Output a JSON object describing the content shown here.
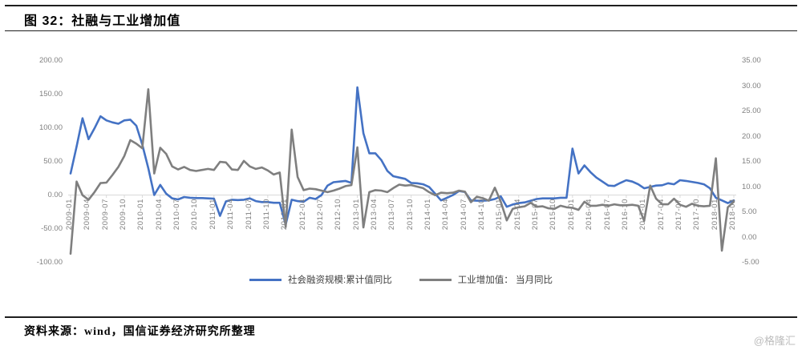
{
  "page": {
    "title": "图 32：社融与工业增加值",
    "source_note": "资料来源：wind，国信证券经济研究所整理",
    "watermark": "@格隆汇"
  },
  "chart_data": {
    "type": "line",
    "title": "社融与工业增加值",
    "gridlines": "none",
    "legend_position": "bottom",
    "x_tick_labels": [
      "2009-01",
      "2009-04",
      "2009-07",
      "2009-10",
      "2010-01",
      "2010-04",
      "2010-07",
      "2010-10",
      "2011-01",
      "2011-04",
      "2011-07",
      "2011-10",
      "2012-01",
      "2012-04",
      "2012-07",
      "2012-10",
      "2013-01",
      "2013-04",
      "2013-07",
      "2013-10",
      "2014-01",
      "2014-04",
      "2014-07",
      "2014-10",
      "2015-01",
      "2015-04",
      "2015-07",
      "2015-10",
      "2016-01",
      "2016-04",
      "2016-07",
      "2016-10",
      "2017-01",
      "2017-04",
      "2017-07",
      "2017-10",
      "2018-01",
      "2018-04"
    ],
    "x_points_per_tick": 3,
    "x_monthly_range": "2009-01 to 2018-04",
    "left_axis": {
      "min": -100,
      "max": 200,
      "step": 50,
      "tick_labels": [
        "200.00",
        "150.00",
        "100.00",
        "50.00",
        "0.00",
        "-50.00",
        "-100.00"
      ]
    },
    "right_axis": {
      "min": -5,
      "max": 35,
      "step": 5,
      "tick_labels": [
        "35.00",
        "30.00",
        "25.00",
        "20.00",
        "15.00",
        "10.00",
        "5.00",
        "0.00",
        "-5.00"
      ]
    },
    "axis_color": "#D9D9D9",
    "series": [
      {
        "name": "社会融资规模:累计值同比",
        "axis": "left",
        "color": "#4472C4",
        "values": [
          32,
          72,
          114,
          83,
          99,
          117,
          111,
          108,
          106,
          111,
          112,
          103,
          75,
          40,
          0,
          15,
          2,
          -5,
          -6.5,
          -3,
          -4,
          -4.5,
          -4.5,
          -5,
          -5.5,
          -31,
          -9.5,
          -7,
          -7.5,
          -7,
          -5,
          -9,
          -10.5,
          -10.5,
          -11.5,
          -11.5,
          -44,
          -7,
          -9,
          -10,
          -4,
          -6,
          0,
          14,
          19,
          20,
          21,
          18,
          160,
          92,
          62,
          62,
          52,
          36,
          28,
          26,
          24,
          18,
          17.5,
          16,
          12,
          2,
          -8,
          -4,
          0,
          6,
          4.5,
          -8,
          -8.5,
          -8.5,
          -8,
          -6,
          -2,
          -17.5,
          -14,
          -12,
          -11,
          -8.5,
          -6,
          -5,
          -5,
          -5,
          -4,
          -4,
          69,
          32,
          44,
          34,
          26,
          20,
          14,
          13.5,
          18,
          22,
          20,
          16,
          10,
          12,
          14,
          14.5,
          17.5,
          16,
          22,
          21,
          19.5,
          18,
          16,
          10,
          -4,
          -8,
          -12,
          -8
        ]
      },
      {
        "name": "工业增加值： 当月同比",
        "axis": "right",
        "color": "#7F7F7F",
        "values": [
          -3.3,
          11,
          8.3,
          7.4,
          8.9,
          10.7,
          10.8,
          12.3,
          13.9,
          16.1,
          19.2,
          18.5,
          17.6,
          29.3,
          12.6,
          17.7,
          16.5,
          14,
          13.4,
          13.9,
          13.3,
          13.1,
          13.3,
          13.5,
          13.3,
          14.9,
          14.8,
          13.4,
          13.3,
          15.1,
          14,
          13.5,
          13.8,
          13.2,
          12.4,
          12.8,
          2,
          21.3,
          11.9,
          9.3,
          9.6,
          9.5,
          9.2,
          8.9,
          9.2,
          9.6,
          10.1,
          10.3,
          17.8,
          1.9,
          8.9,
          9.3,
          9.2,
          8.9,
          9.7,
          10.4,
          10.2,
          10.3,
          10,
          9.7,
          8.9,
          8.3,
          8.8,
          8.7,
          8.8,
          9.2,
          9,
          6.9,
          8,
          7.7,
          7.2,
          9.8,
          7,
          3.3,
          5.6,
          5.9,
          6.1,
          6.8,
          6,
          6.1,
          5.7,
          5.6,
          6.2,
          5.9,
          5.8,
          5.4,
          7,
          6.2,
          6.2,
          6.4,
          6.2,
          6.5,
          6.3,
          6.3,
          6.4,
          6.2,
          3.2,
          10.2,
          7.6,
          6.5,
          6.5,
          7.6,
          6.4,
          6,
          6.6,
          6.2,
          6.1,
          6.2,
          15.6,
          -2.7,
          5.9,
          7
        ]
      }
    ]
  }
}
